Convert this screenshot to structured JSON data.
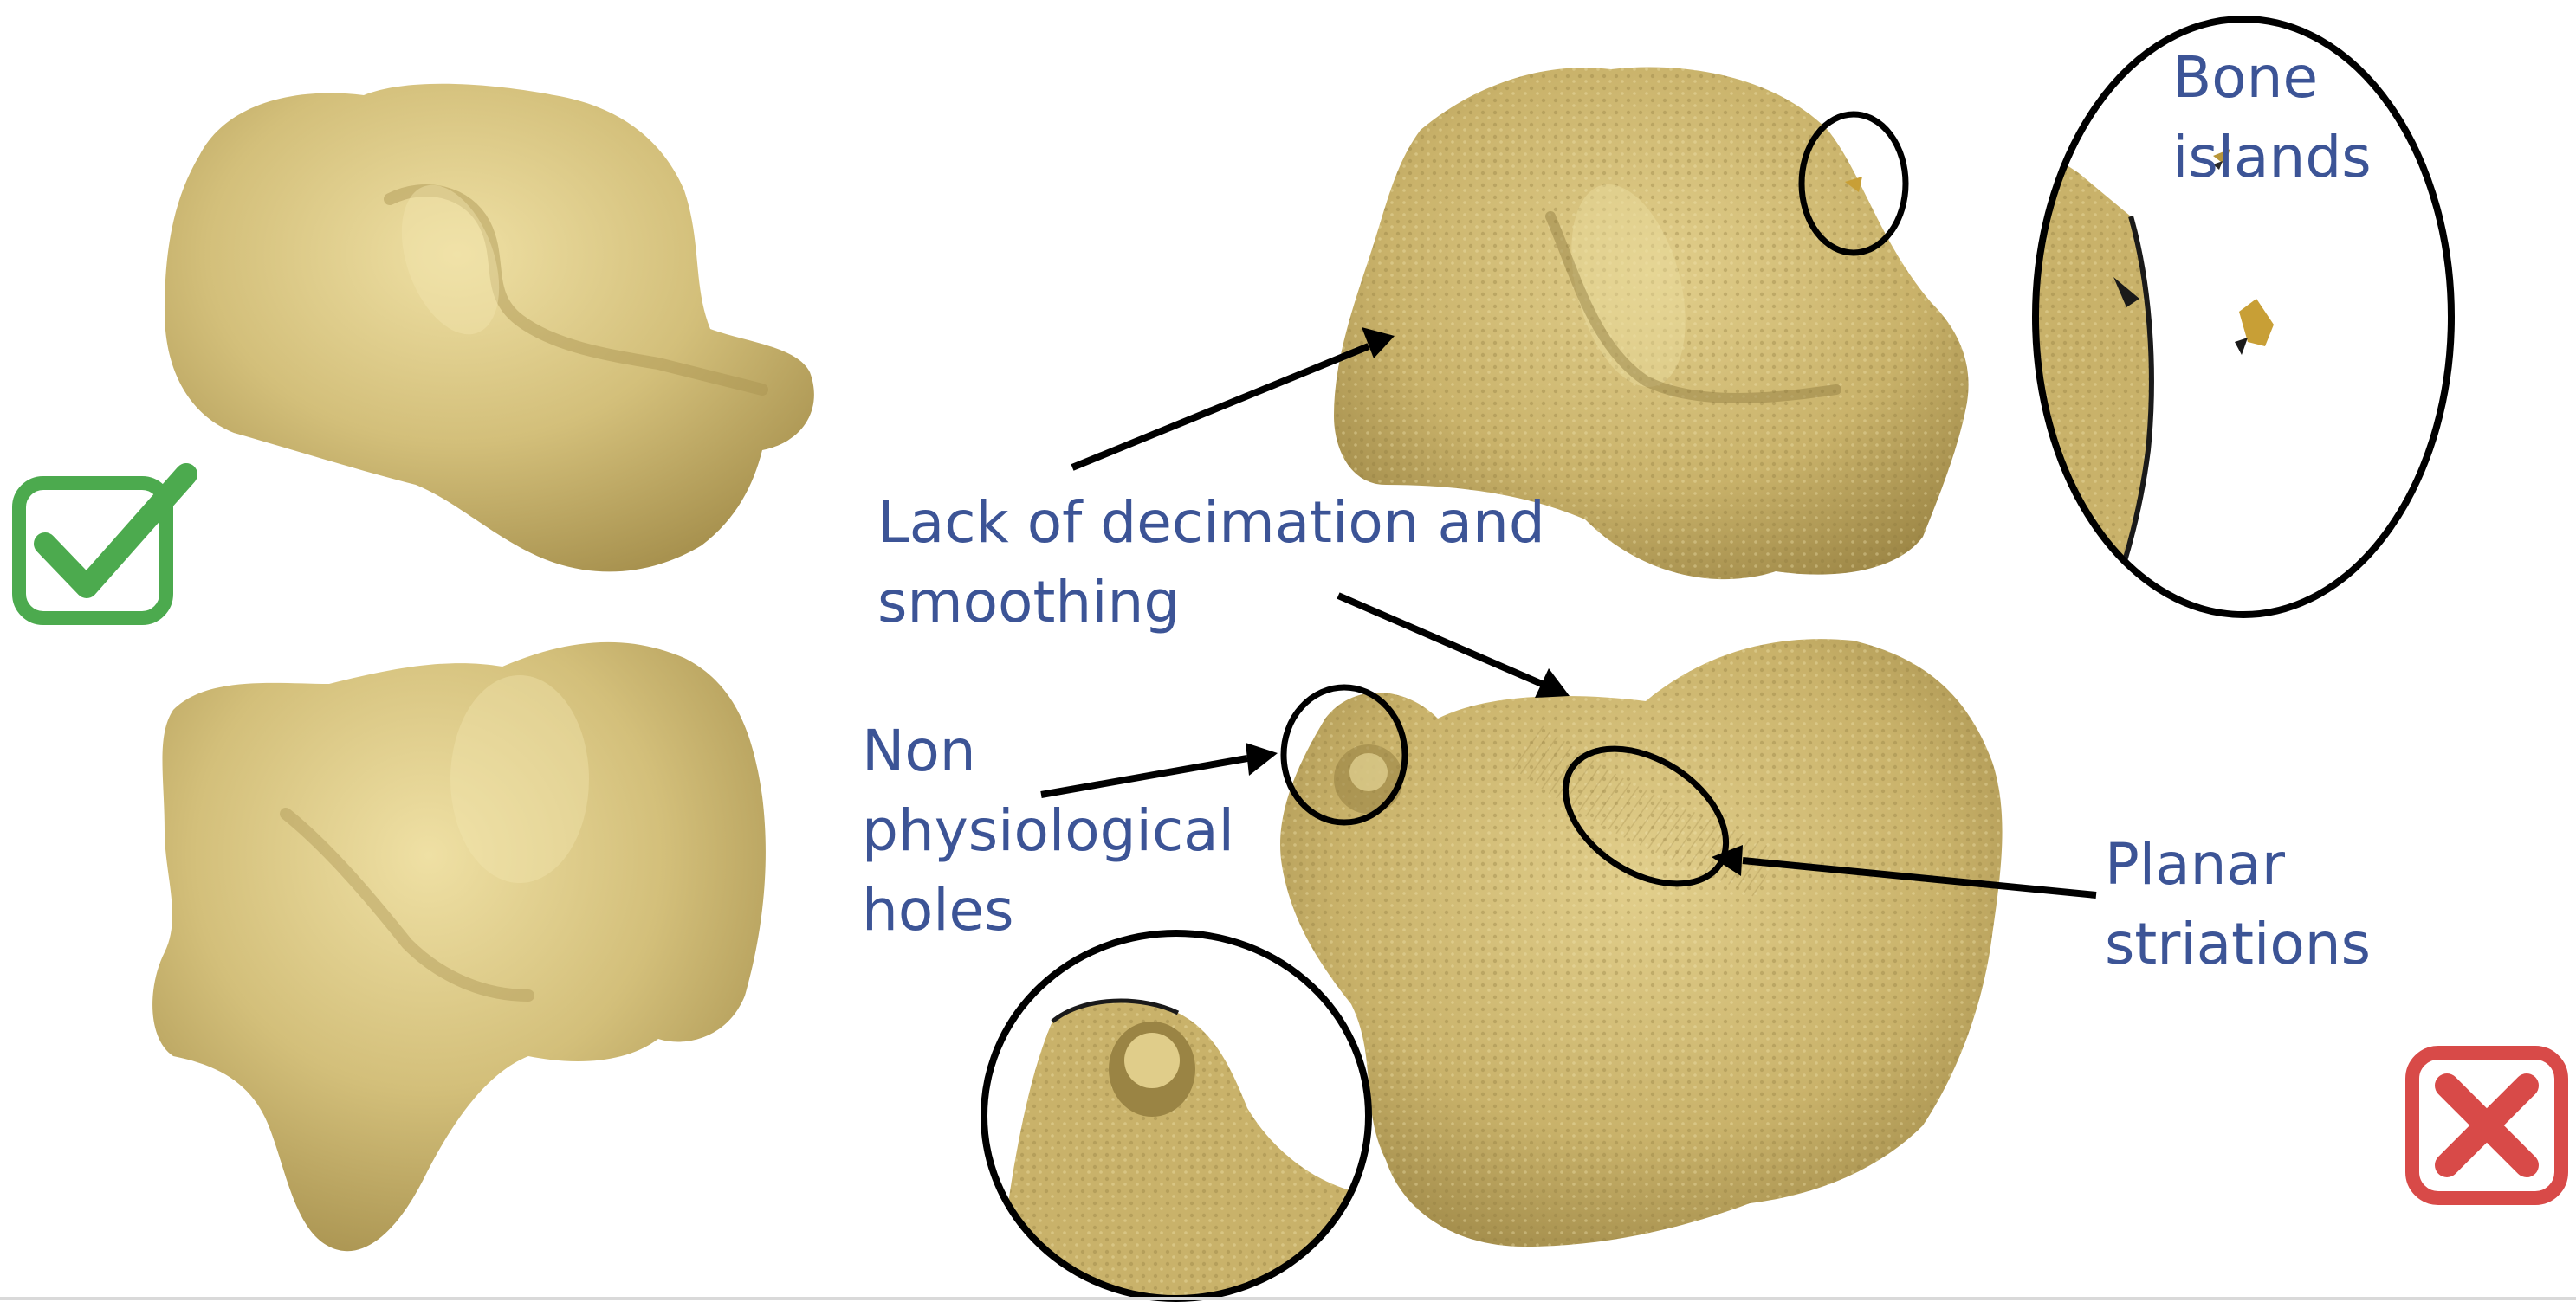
{
  "labels": {
    "decimation": "Lack of decimation and\nsmoothing",
    "holes": "Non\nphysiological\nholes",
    "striations": "Planar\nstriations",
    "bone_islands": "Bone\nislands"
  },
  "colors": {
    "label_text": "#3c5496",
    "bone_fill": "#d3bf7a",
    "bone_shadow": "#a8924f",
    "good_mark": "#4caa4e",
    "bad_mark": "#d84a48",
    "outline": "#000000"
  },
  "marks": {
    "good": "checkmark-icon",
    "bad": "x-mark-icon"
  }
}
